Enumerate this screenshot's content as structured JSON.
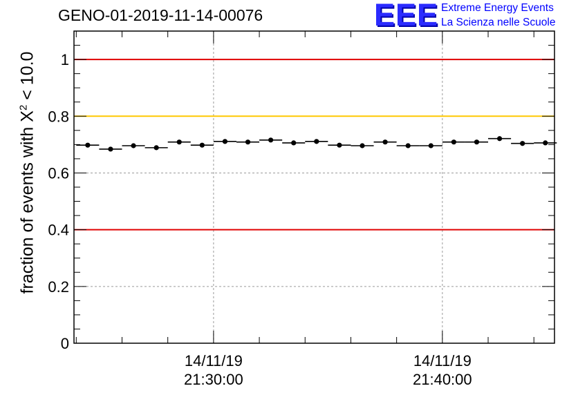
{
  "header": {
    "run_id": "GENO-01-2019-11-14-00076",
    "logo_mark": "EEE",
    "logo_line1": "Extreme Energy Events",
    "logo_line2": "La Scienza nelle Scuole"
  },
  "colors": {
    "limit_red": "#e00000",
    "limit_orange": "#ffc800",
    "marker": "#000000",
    "grid": "#9a9a9a"
  },
  "chart_data": {
    "type": "scatter",
    "title": "GENO-01-2019-11-14-00076",
    "ylabel_prefix": "fraction of events with ",
    "ylabel_symbol": "X",
    "ylabel_sup": "2",
    "ylabel_suffix": " < 10.0",
    "xlabel": "",
    "ylim": [
      0,
      1.1
    ],
    "y_ticks": [
      {
        "value": 0,
        "label": "0"
      },
      {
        "value": 0.2,
        "label": "0.2"
      },
      {
        "value": 0.4,
        "label": "0.4"
      },
      {
        "value": 0.6,
        "label": "0.6"
      },
      {
        "value": 0.8,
        "label": "0.8"
      },
      {
        "value": 1,
        "label": "1"
      }
    ],
    "x_range_minutes": [
      -6.1,
      14.9
    ],
    "x_ticks": [
      {
        "minutes": 0,
        "date": "14/11/19",
        "time": "21:30:00"
      },
      {
        "minutes": 10,
        "date": "14/11/19",
        "time": "21:40:00"
      }
    ],
    "grid": true,
    "reference_lines": [
      {
        "value": 1.0,
        "color": "red"
      },
      {
        "value": 0.8,
        "color": "orange"
      },
      {
        "value": 0.4,
        "color": "red"
      }
    ],
    "bin_width_minutes": 1,
    "x_minutes": [
      -5.5,
      -4.5,
      -3.5,
      -2.5,
      -1.5,
      -0.5,
      0.5,
      1.5,
      2.5,
      3.5,
      4.5,
      5.5,
      6.5,
      7.5,
      8.5,
      9.5,
      10.5,
      11.5,
      12.5,
      13.5,
      14.5
    ],
    "values": [
      0.698,
      0.684,
      0.696,
      0.689,
      0.709,
      0.698,
      0.711,
      0.709,
      0.716,
      0.706,
      0.711,
      0.698,
      0.696,
      0.709,
      0.696,
      0.696,
      0.709,
      0.709,
      0.721,
      0.704,
      0.706
    ]
  }
}
